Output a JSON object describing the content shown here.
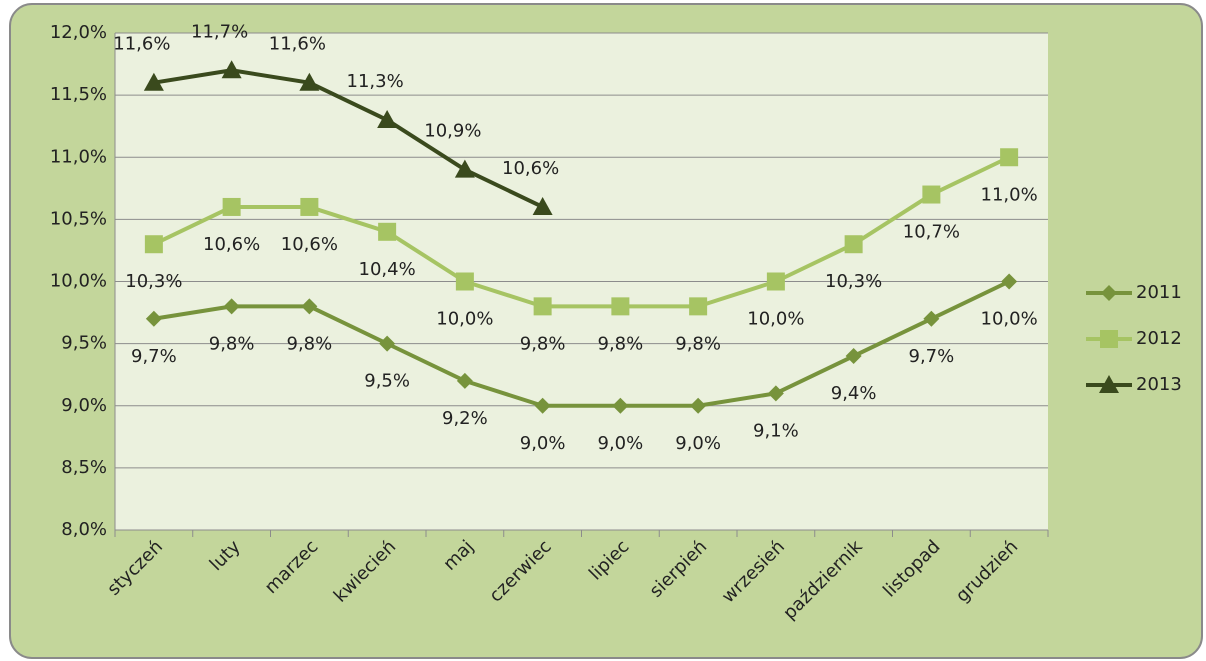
{
  "chart_data": {
    "type": "line",
    "categories": [
      "styczeń",
      "luty",
      "marzec",
      "kwiecień",
      "maj",
      "czerwiec",
      "lipiec",
      "sierpień",
      "wrzesień",
      "październik",
      "listopad",
      "grudzień"
    ],
    "ylim": [
      8,
      12
    ],
    "yticks": [
      {
        "value": 8,
        "label": "8,0%"
      },
      {
        "value": 8.5,
        "label": "8,5%"
      },
      {
        "value": 9,
        "label": "9,0%"
      },
      {
        "value": 9.5,
        "label": "9,5%"
      },
      {
        "value": 10,
        "label": "10,0%"
      },
      {
        "value": 10.5,
        "label": "10,5%"
      },
      {
        "value": 11,
        "label": "11,0%"
      },
      {
        "value": 11.5,
        "label": "11,5%"
      },
      {
        "value": 12,
        "label": "12,0%"
      }
    ],
    "grid": true,
    "legend": "right",
    "series": [
      {
        "name": "2011",
        "color": "#77933c",
        "marker": "diamond",
        "values": [
          9.7,
          9.8,
          9.8,
          9.5,
          9.2,
          9.0,
          9.0,
          9.0,
          9.1,
          9.4,
          9.7,
          10.0
        ],
        "value_labels": [
          "9,7%",
          "9,8%",
          "9,8%",
          "9,5%",
          "9,2%",
          "9,0%",
          "9,0%",
          "9,0%",
          "9,1%",
          "9,4%",
          "9,7%",
          "10,0%"
        ]
      },
      {
        "name": "2012",
        "color": "#a6c463",
        "marker": "square",
        "values": [
          10.3,
          10.6,
          10.6,
          10.4,
          10.0,
          9.8,
          9.8,
          9.8,
          10.0,
          10.3,
          10.7,
          11.0
        ],
        "value_labels": [
          "10,3%",
          "10,6%",
          "10,6%",
          "10,4%",
          "10,0%",
          "9,8%",
          "9,8%",
          "9,8%",
          "10,0%",
          "10,3%",
          "10,7%",
          "11,0%"
        ]
      },
      {
        "name": "2013",
        "color": "#3a4a1d",
        "marker": "triangle",
        "values": [
          11.6,
          11.7,
          11.6,
          11.3,
          10.9,
          10.6,
          null,
          null,
          null,
          null,
          null,
          null
        ],
        "value_labels": [
          "11,6%",
          "11,7%",
          "11,6%",
          "11,3%",
          "10,9%",
          "10,6%",
          null,
          null,
          null,
          null,
          null,
          null
        ]
      }
    ]
  }
}
